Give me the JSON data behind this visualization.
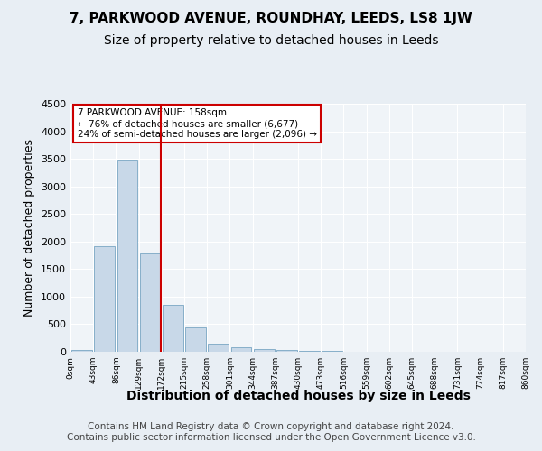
{
  "title1": "7, PARKWOOD AVENUE, ROUNDHAY, LEEDS, LS8 1JW",
  "title2": "Size of property relative to detached houses in Leeds",
  "xlabel": "Distribution of detached houses by size in Leeds",
  "ylabel": "Number of detached properties",
  "footer": "Contains HM Land Registry data © Crown copyright and database right 2024.\nContains public sector information licensed under the Open Government Licence v3.0.",
  "tick_labels": [
    "0sqm",
    "43sqm",
    "86sqm",
    "129sqm",
    "172sqm",
    "215sqm",
    "258sqm",
    "301sqm",
    "344sqm",
    "387sqm",
    "430sqm",
    "473sqm",
    "516sqm",
    "559sqm",
    "602sqm",
    "645sqm",
    "688sqm",
    "731sqm",
    "774sqm",
    "817sqm",
    "860sqm"
  ],
  "values": [
    30,
    1920,
    3480,
    1780,
    850,
    450,
    140,
    80,
    50,
    30,
    20,
    10,
    5,
    3,
    2,
    1,
    1,
    0,
    0,
    0
  ],
  "bar_color": "#c8d8e8",
  "bar_edge_color": "#6699bb",
  "annotation_title": "7 PARKWOOD AVENUE: 158sqm",
  "annotation_line1": "← 76% of detached houses are smaller (6,677)",
  "annotation_line2": "24% of semi-detached houses are larger (2,096) →",
  "annotation_box_color": "#ffffff",
  "annotation_box_edge": "#cc0000",
  "vline_color": "#cc0000",
  "ylim": [
    0,
    4500
  ],
  "yticks": [
    0,
    500,
    1000,
    1500,
    2000,
    2500,
    3000,
    3500,
    4000,
    4500
  ],
  "bg_color": "#e8eef4",
  "plot_bg_color": "#f0f4f8",
  "title1_fontsize": 11,
  "title2_fontsize": 10,
  "xlabel_fontsize": 10,
  "ylabel_fontsize": 9,
  "footer_fontsize": 7.5
}
